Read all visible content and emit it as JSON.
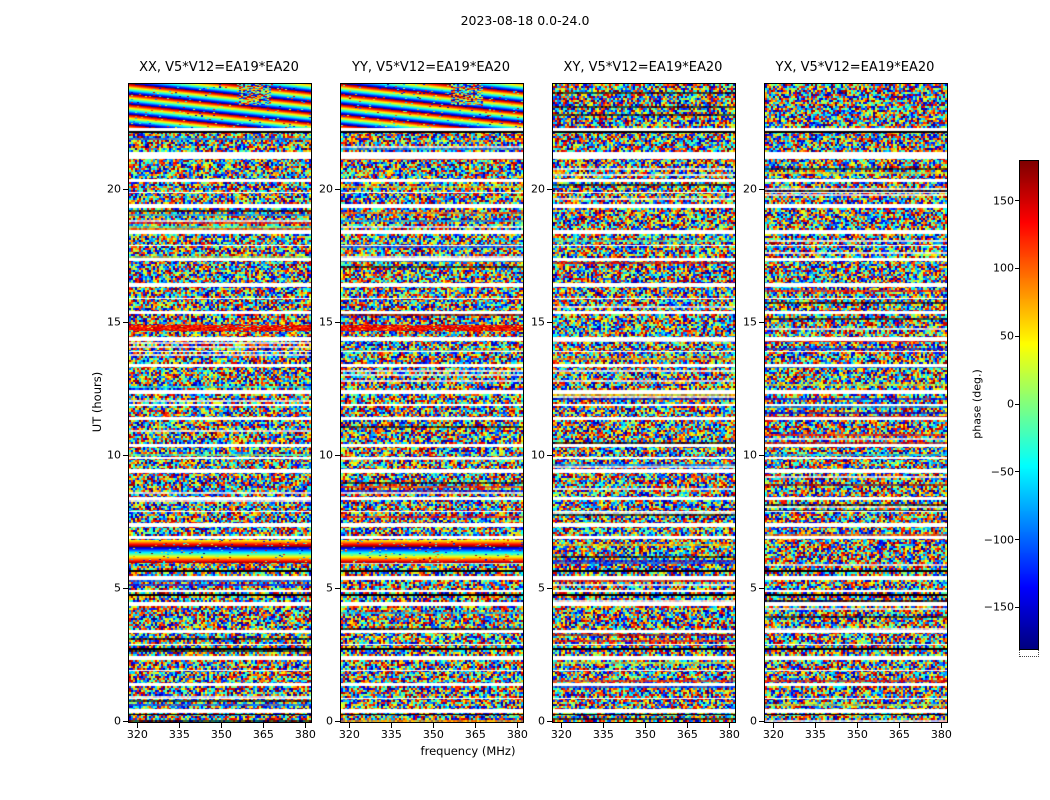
{
  "title": "2023-08-18 0.0-24.0",
  "x_axis": {
    "label": "frequency (MHz)",
    "ticks": [
      320,
      335,
      350,
      365,
      380
    ],
    "range_mhz": [
      317,
      382
    ]
  },
  "y_axis": {
    "label": "UT (hours)",
    "ticks": [
      0,
      5,
      10,
      15,
      20
    ],
    "range_hours": [
      0,
      24
    ]
  },
  "colorbar": {
    "label": "phase (deg.)",
    "ticks": [
      150,
      100,
      50,
      0,
      -50,
      -100,
      -150
    ],
    "range_deg": [
      -180,
      180
    ],
    "colormap": "jet"
  },
  "panels": [
    {
      "id": "XX",
      "title": "XX, V5*V12=EA19*EA20",
      "seed": 11,
      "has_coherent_bands": true
    },
    {
      "id": "YY",
      "title": "YY, V5*V12=EA19*EA20",
      "seed": 22,
      "has_coherent_bands": true
    },
    {
      "id": "XY",
      "title": "XY, V5*V12=EA19*EA20",
      "seed": 33,
      "has_coherent_bands": false
    },
    {
      "id": "YX",
      "title": "YX, V5*V12=EA19*EA20",
      "seed": 44,
      "has_coherent_bands": false
    }
  ],
  "chart_data": {
    "type": "heatmap",
    "title": "2023-08-18 0.0-24.0",
    "xlabel": "frequency (MHz)",
    "ylabel": "UT (hours)",
    "zlabel": "phase (deg.)",
    "x_range": [
      317,
      382
    ],
    "y_range": [
      0,
      24
    ],
    "z_range": [
      -180,
      180
    ],
    "colormap": "jet",
    "baseline": "V5*V12=EA19*EA20",
    "correlations": [
      "XX",
      "YY",
      "XY",
      "YX"
    ],
    "content": "Interferometric visibility phase versus frequency (x) and UT time (y) for baseline V5*V12=EA19*EA20, four correlation products. Phase is mostly uniformly random noise across -180..180 deg; XX and YY show coherent phase structure in the bands listed below; white horizontal rows are time gaps between scans; a few rows are black (zero/flagged).",
    "time_gaps_hours": [
      [
        0.35,
        0.5
      ],
      [
        0.85,
        0.9
      ],
      [
        1.35,
        1.47
      ],
      [
        1.9,
        1.96
      ],
      [
        2.35,
        2.47
      ],
      [
        2.9,
        2.95
      ],
      [
        3.35,
        3.47
      ],
      [
        4.35,
        4.5
      ],
      [
        4.9,
        4.95
      ],
      [
        5.35,
        5.5
      ],
      [
        6.9,
        7.0
      ],
      [
        7.35,
        7.47
      ],
      [
        7.9,
        7.95
      ],
      [
        8.35,
        8.47
      ],
      [
        9.35,
        9.5
      ],
      [
        9.9,
        9.95
      ],
      [
        10.35,
        10.47
      ],
      [
        11.35,
        11.47
      ],
      [
        11.9,
        11.95
      ],
      [
        12.35,
        12.5
      ],
      [
        13.35,
        13.47
      ],
      [
        13.9,
        13.95
      ],
      [
        14.35,
        14.5
      ],
      [
        15.35,
        15.47
      ],
      [
        15.9,
        15.95
      ],
      [
        16.35,
        16.5
      ],
      [
        17.35,
        17.47
      ],
      [
        17.9,
        17.95
      ],
      [
        18.35,
        18.5
      ],
      [
        19.35,
        19.47
      ],
      [
        19.9,
        19.95
      ],
      [
        20.3,
        20.44
      ],
      [
        21.18,
        21.44
      ],
      [
        22.24,
        22.33
      ]
    ],
    "black_rows_hours": [
      22.2,
      5.68,
      4.78,
      2.75,
      0.28
    ],
    "coherent_bands": [
      {
        "start_hour": 22.35,
        "end_hour": 24.0,
        "panels": [
          "XX",
          "YY"
        ],
        "style": "diagonal-rainbow"
      },
      {
        "start_hour": 6.0,
        "end_hour": 6.85,
        "panels": [
          "XX",
          "YY"
        ],
        "style": "horizontal-rainbow"
      },
      {
        "start_hour": 14.7,
        "end_hour": 14.94,
        "panels": [
          "XX",
          "YY"
        ],
        "style": "red"
      }
    ]
  }
}
